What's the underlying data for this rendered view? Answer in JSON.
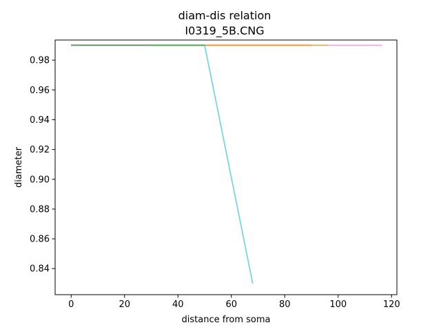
{
  "chart_data": {
    "type": "line",
    "title_line1": "diam-dis relation",
    "title_line2": "I0319_5B.CNG",
    "xlabel": "distance from soma",
    "ylabel": "diameter",
    "xlim": [
      -6,
      122
    ],
    "ylim": [
      0.8225,
      0.9935
    ],
    "xticks": [
      0,
      20,
      40,
      60,
      80,
      100,
      120
    ],
    "yticks": [
      0.84,
      0.86,
      0.88,
      0.9,
      0.92,
      0.94,
      0.96,
      0.98
    ],
    "series": [
      {
        "color": "#e377c2",
        "x": [
          0,
          116.5
        ],
        "y": [
          0.99,
          0.99
        ]
      },
      {
        "color": "#bcbd22",
        "x": [
          0,
          96
        ],
        "y": [
          0.99,
          0.99
        ]
      },
      {
        "color": "#ff7f0e",
        "x": [
          0,
          90
        ],
        "y": [
          0.99,
          0.99
        ]
      },
      {
        "color": "#17becf",
        "x": [
          0,
          50,
          68
        ],
        "y": [
          0.99,
          0.99,
          0.83
        ]
      },
      {
        "color": "#2ca02c",
        "x": [
          0,
          50
        ],
        "y": [
          0.99,
          0.99
        ]
      },
      {
        "color": "#7f7f7f",
        "x": [
          0,
          30
        ],
        "y": [
          0.99,
          0.99
        ]
      }
    ]
  }
}
